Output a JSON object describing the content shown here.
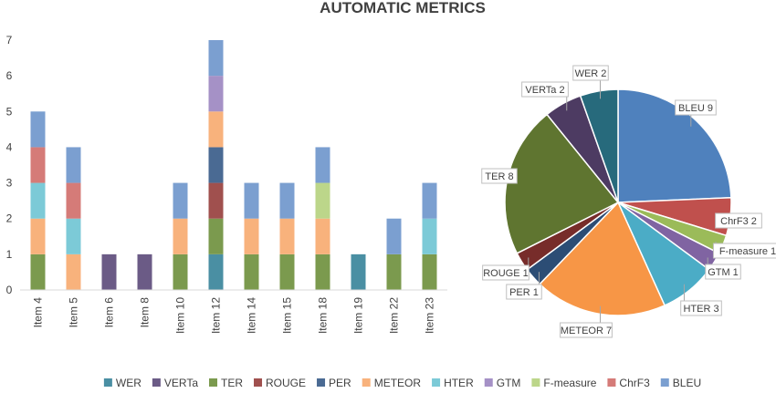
{
  "chart_data": [
    {
      "type": "bar",
      "stacked": true,
      "title": "AUTOMATIC METRICS",
      "categories": [
        "Item 4",
        "Item 5",
        "Item 6",
        "Item 8",
        "Item 10",
        "Item 12",
        "Item 14",
        "Item 15",
        "Item 18",
        "Item 19",
        "Item 22",
        "Item 23"
      ],
      "ylim": [
        0,
        7
      ],
      "yticks": [
        0,
        1,
        2,
        3,
        4,
        5,
        6,
        7
      ],
      "grid": false,
      "legend_position": "bottom",
      "series": [
        {
          "name": "WER",
          "color": "#4a8fa3",
          "values": [
            0,
            0,
            0,
            0,
            0,
            1,
            0,
            0,
            0,
            1,
            0,
            0
          ]
        },
        {
          "name": "VERTa",
          "color": "#6b5b86",
          "values": [
            0,
            0,
            1,
            1,
            0,
            0,
            0,
            0,
            0,
            0,
            0,
            0
          ]
        },
        {
          "name": "TER",
          "color": "#7b9a4e",
          "values": [
            1,
            0,
            0,
            0,
            1,
            1,
            1,
            1,
            1,
            0,
            1,
            1
          ]
        },
        {
          "name": "ROUGE",
          "color": "#a0504e",
          "values": [
            0,
            0,
            0,
            0,
            0,
            1,
            0,
            0,
            0,
            0,
            0,
            0
          ]
        },
        {
          "name": "PER",
          "color": "#4a6a93",
          "values": [
            0,
            0,
            0,
            0,
            0,
            1,
            0,
            0,
            0,
            0,
            0,
            0
          ]
        },
        {
          "name": "METEOR",
          "color": "#f8b27c",
          "values": [
            1,
            1,
            0,
            0,
            1,
            1,
            1,
            1,
            1,
            0,
            0,
            0
          ]
        },
        {
          "name": "HTER",
          "color": "#7ccad7",
          "values": [
            1,
            1,
            0,
            0,
            0,
            0,
            0,
            0,
            0,
            0,
            0,
            1
          ]
        },
        {
          "name": "GTM",
          "color": "#a591c6",
          "values": [
            0,
            0,
            0,
            0,
            0,
            1,
            0,
            0,
            0,
            0,
            0,
            0
          ]
        },
        {
          "name": "F-measure",
          "color": "#bcd68a",
          "values": [
            0,
            0,
            0,
            0,
            0,
            0,
            0,
            0,
            1,
            0,
            0,
            0
          ]
        },
        {
          "name": "ChrF3",
          "color": "#d57b78",
          "values": [
            1,
            1,
            0,
            0,
            0,
            0,
            0,
            0,
            0,
            0,
            0,
            0
          ]
        },
        {
          "name": "BLEU",
          "color": "#7b9fd0",
          "values": [
            1,
            1,
            0,
            0,
            1,
            1,
            1,
            1,
            1,
            0,
            1,
            1
          ]
        }
      ]
    },
    {
      "type": "pie",
      "slices": [
        {
          "label": "BLEU 9",
          "value": 9,
          "color": "#4f81bd"
        },
        {
          "label": "ChrF3 2",
          "value": 2,
          "color": "#c0504d"
        },
        {
          "label": "F-measure 1",
          "value": 1,
          "color": "#9bbb59"
        },
        {
          "label": "GTM 1",
          "value": 1,
          "color": "#8064a2"
        },
        {
          "label": "HTER 3",
          "value": 3,
          "color": "#4bacc6"
        },
        {
          "label": "METEOR 7",
          "value": 7,
          "color": "#f79646"
        },
        {
          "label": "PER 1",
          "value": 1,
          "color": "#2c4d75"
        },
        {
          "label": "ROUGE 1",
          "value": 1,
          "color": "#772c2a"
        },
        {
          "label": "TER 8",
          "value": 8,
          "color": "#5f7530"
        },
        {
          "label": "VERTa 2",
          "value": 2,
          "color": "#4d3b62"
        },
        {
          "label": "WER 2",
          "value": 2,
          "color": "#276a7c"
        }
      ]
    }
  ]
}
